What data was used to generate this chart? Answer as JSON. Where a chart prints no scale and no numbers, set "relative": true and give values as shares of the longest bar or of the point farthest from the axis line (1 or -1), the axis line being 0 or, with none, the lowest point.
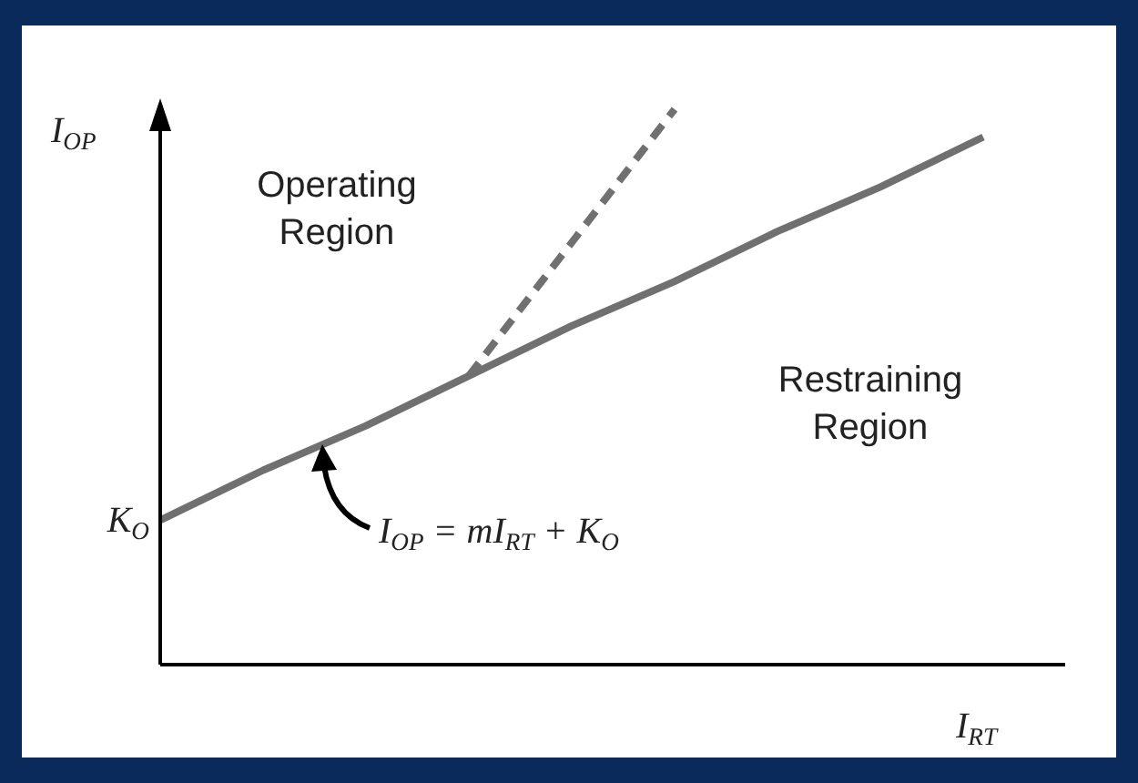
{
  "chart_data": {
    "type": "line",
    "relative": true,
    "xlabel": "I$_{RT}$",
    "ylabel": "I$_{OP}$",
    "categories": [
      null,
      null,
      null,
      null,
      null,
      null,
      null,
      null,
      null
    ],
    "series": [
      {
        "color": "#707070",
        "line_style": "solid",
        "values": [
          0.26,
          0.35,
          0.43,
          0.52,
          0.61,
          0.69,
          0.78,
          0.86,
          0.95
        ]
      },
      {
        "color": "#707070",
        "line_style": "dashed",
        "values": [
          null,
          null,
          null,
          0.52,
          0.76,
          1.0,
          null,
          null,
          null
        ]
      }
    ],
    "annotations": [
      "Operating Region",
      "Restraining Region",
      "I$_{OP}$ = mI$_{RT}$ + K$_{O}$",
      "K$_{O}$"
    ]
  }
}
